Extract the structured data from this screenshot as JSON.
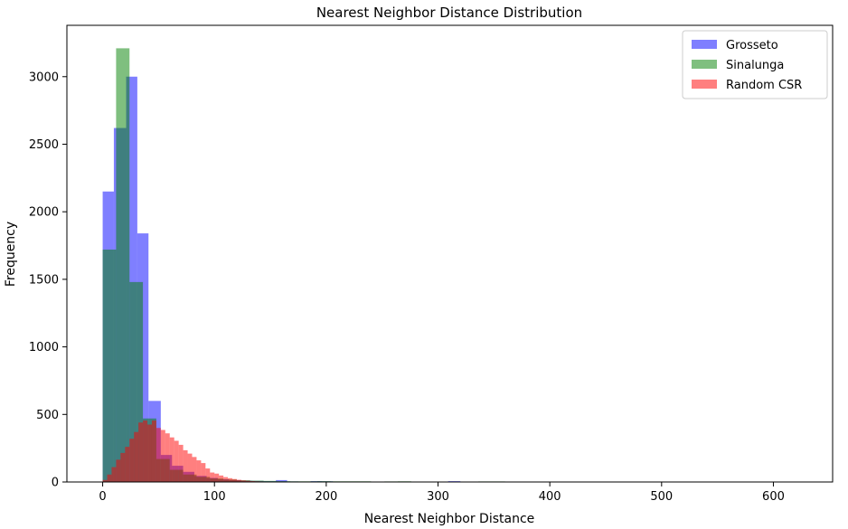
{
  "chart_data": {
    "type": "bar",
    "title": "Nearest Neighbor Distance Distribution",
    "xlabel": "Nearest Neighbor Distance",
    "ylabel": "Frequency",
    "xlim": [
      -32,
      653
    ],
    "ylim": [
      0,
      3380
    ],
    "xticks": [
      0,
      100,
      200,
      300,
      400,
      500,
      600
    ],
    "yticks": [
      0,
      500,
      1000,
      1500,
      2000,
      2500,
      3000
    ],
    "grid": false,
    "legend_position": "top-right",
    "series": [
      {
        "name": "Grosseto",
        "color": "#0000ff",
        "opacity": 0.5,
        "bins": [
          [
            0,
            10,
            2150
          ],
          [
            10,
            21,
            2620
          ],
          [
            21,
            31,
            3000
          ],
          [
            31,
            41,
            1840
          ],
          [
            41,
            52,
            600
          ],
          [
            52,
            62,
            200
          ],
          [
            62,
            72,
            120
          ],
          [
            72,
            82,
            75
          ],
          [
            82,
            93,
            45
          ],
          [
            93,
            103,
            30
          ],
          [
            103,
            113,
            20
          ],
          [
            113,
            124,
            14
          ],
          [
            124,
            134,
            10
          ],
          [
            134,
            144,
            8
          ],
          [
            144,
            155,
            6
          ],
          [
            155,
            165,
            14
          ],
          [
            165,
            175,
            4
          ],
          [
            175,
            186,
            3
          ],
          [
            186,
            196,
            6
          ],
          [
            196,
            206,
            5
          ],
          [
            206,
            217,
            3
          ],
          [
            217,
            227,
            3
          ],
          [
            227,
            237,
            2
          ],
          [
            237,
            248,
            2
          ],
          [
            248,
            258,
            2
          ],
          [
            258,
            268,
            2
          ],
          [
            268,
            278,
            2
          ],
          [
            278,
            289,
            1
          ],
          [
            289,
            299,
            1
          ],
          [
            299,
            309,
            1
          ],
          [
            309,
            320,
            6
          ],
          [
            320,
            330,
            1
          ],
          [
            330,
            340,
            1
          ],
          [
            340,
            351,
            1
          ]
        ]
      },
      {
        "name": "Sinalunga",
        "color": "#008000",
        "opacity": 0.5,
        "bins": [
          [
            0,
            12,
            1720
          ],
          [
            12,
            24,
            3210
          ],
          [
            24,
            36,
            1480
          ],
          [
            36,
            48,
            470
          ],
          [
            48,
            60,
            170
          ],
          [
            60,
            72,
            90
          ],
          [
            72,
            84,
            55
          ],
          [
            84,
            96,
            38
          ],
          [
            96,
            108,
            26
          ],
          [
            108,
            120,
            18
          ],
          [
            120,
            132,
            13
          ],
          [
            132,
            144,
            10
          ],
          [
            144,
            156,
            8
          ],
          [
            156,
            168,
            6
          ],
          [
            168,
            180,
            5
          ],
          [
            180,
            192,
            5
          ],
          [
            192,
            204,
            6
          ],
          [
            204,
            216,
            5
          ],
          [
            216,
            228,
            5
          ],
          [
            228,
            240,
            5
          ],
          [
            240,
            252,
            3
          ],
          [
            252,
            264,
            4
          ],
          [
            264,
            276,
            5
          ],
          [
            276,
            288,
            3
          ],
          [
            288,
            300,
            2
          ],
          [
            300,
            312,
            2
          ],
          [
            312,
            324,
            2
          ],
          [
            324,
            336,
            2
          ],
          [
            336,
            348,
            4
          ],
          [
            348,
            360,
            4
          ]
        ]
      },
      {
        "name": "Random CSR",
        "color": "#ff0000",
        "opacity": 0.5,
        "bins": [
          [
            0,
            4,
            15
          ],
          [
            4,
            8,
            55
          ],
          [
            8,
            12,
            110
          ],
          [
            12,
            16,
            165
          ],
          [
            16,
            20,
            215
          ],
          [
            20,
            24,
            260
          ],
          [
            24,
            28,
            320
          ],
          [
            28,
            32,
            370
          ],
          [
            32,
            36,
            440
          ],
          [
            36,
            40,
            455
          ],
          [
            40,
            44,
            425
          ],
          [
            44,
            48,
            455
          ],
          [
            48,
            52,
            400
          ],
          [
            52,
            56,
            385
          ],
          [
            56,
            60,
            360
          ],
          [
            60,
            64,
            330
          ],
          [
            64,
            68,
            305
          ],
          [
            68,
            72,
            275
          ],
          [
            72,
            76,
            235
          ],
          [
            76,
            80,
            210
          ],
          [
            80,
            84,
            185
          ],
          [
            84,
            88,
            160
          ],
          [
            88,
            92,
            140
          ],
          [
            92,
            96,
            100
          ],
          [
            96,
            100,
            70
          ],
          [
            100,
            104,
            62
          ],
          [
            104,
            108,
            48
          ],
          [
            108,
            112,
            36
          ],
          [
            112,
            116,
            28
          ],
          [
            116,
            120,
            22
          ],
          [
            120,
            124,
            16
          ],
          [
            124,
            128,
            12
          ],
          [
            128,
            132,
            9
          ],
          [
            132,
            136,
            7
          ],
          [
            136,
            140,
            5
          ],
          [
            140,
            144,
            4
          ],
          [
            144,
            148,
            3
          ],
          [
            148,
            152,
            2
          ],
          [
            152,
            156,
            2
          ],
          [
            156,
            160,
            1
          ]
        ]
      }
    ]
  }
}
